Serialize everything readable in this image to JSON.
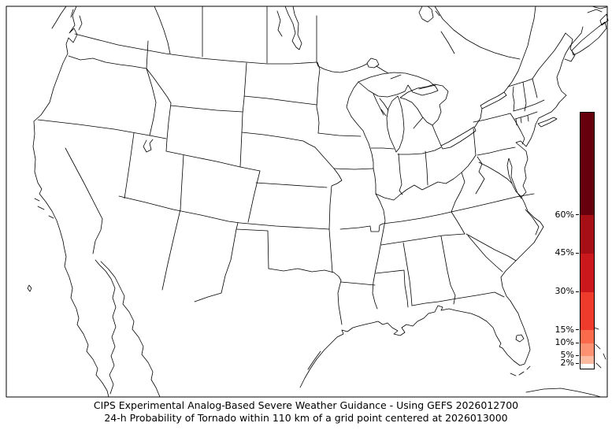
{
  "figure": {
    "background_color": "#ffffff",
    "frame_color": "#000000",
    "map_line_color": "#000000",
    "land_color": "#ffffff"
  },
  "caption": {
    "line1": "CIPS Experimental Analog-Based Severe Weather Guidance - Using GEFS 2026012700",
    "line2": "24-h Probability of Tornado within 110 km of a grid point centered at 2026013000"
  },
  "colorbar": {
    "orientation": "vertical",
    "unit": "%",
    "min": 0,
    "max": 100,
    "border_color": "#000000",
    "ticks": [
      {
        "value": 60,
        "label": "60%"
      },
      {
        "value": 45,
        "label": "45%"
      },
      {
        "value": 30,
        "label": "30%"
      },
      {
        "value": 15,
        "label": "15%"
      },
      {
        "value": 10,
        "label": "10%"
      },
      {
        "value": 5,
        "label": "5%"
      },
      {
        "value": 2,
        "label": "2%"
      }
    ],
    "segments": [
      {
        "from": 0,
        "to": 2,
        "color": "#ffffff"
      },
      {
        "from": 2,
        "to": 5,
        "color": "#fcbba1"
      },
      {
        "from": 5,
        "to": 10,
        "color": "#fc9272"
      },
      {
        "from": 10,
        "to": 15,
        "color": "#fb6a4a"
      },
      {
        "from": 15,
        "to": 30,
        "color": "#ef3b2c"
      },
      {
        "from": 30,
        "to": 45,
        "color": "#cb181d"
      },
      {
        "from": 45,
        "to": 60,
        "color": "#a50f15"
      },
      {
        "from": 60,
        "to": 100,
        "color": "#67000d"
      }
    ]
  },
  "chart_data": {
    "type": "map",
    "title": "CIPS Experimental Analog-Based Severe Weather Guidance - Using GEFS 2026012700",
    "subtitle": "24-h Probability of Tornado within 110 km of a grid point centered at 2026013000",
    "region": "Contiguous United States with southern Canada, northern Mexico, Cuba and Bahamas visible",
    "model": "GEFS",
    "model_init": "2026012700",
    "valid_center": "2026013000",
    "variable": "24-h Probability of Tornado within 110 km of a grid point",
    "shaded_regions": [],
    "note": "No probability contours are shaded on the map (field everywhere below the lowest 2% threshold)",
    "legend": {
      "position": "right",
      "scale_unit": "%",
      "tick_values": [
        2,
        5,
        10,
        15,
        30,
        45,
        60
      ],
      "level_colors": [
        "#ffffff",
        "#fcbba1",
        "#fc9272",
        "#fb6a4a",
        "#ef3b2c",
        "#cb181d",
        "#a50f15",
        "#67000d"
      ]
    }
  }
}
